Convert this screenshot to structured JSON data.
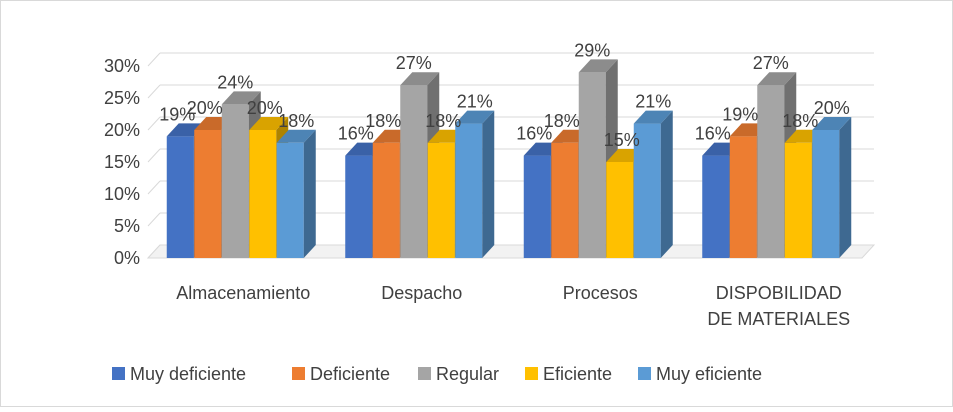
{
  "chart_data": {
    "type": "bar",
    "categories": [
      [
        "Almacenamiento"
      ],
      [
        "Despacho"
      ],
      [
        "Procesos"
      ],
      [
        "DISPOBILIDAD",
        "DE MATERIALES"
      ]
    ],
    "series": [
      {
        "name": "Muy deficiente",
        "color": "#4472C4",
        "values": [
          19,
          16,
          16,
          16
        ],
        "labels": [
          "19%",
          "16%",
          "16%",
          "16%"
        ]
      },
      {
        "name": "Deficiente",
        "color": "#ED7D31",
        "values": [
          20,
          18,
          18,
          19
        ],
        "labels": [
          "20%",
          "18%",
          "18%",
          "19%"
        ]
      },
      {
        "name": "Regular",
        "color": "#A5A5A5",
        "values": [
          24,
          27,
          29,
          27
        ],
        "labels": [
          "24%",
          "27%",
          "29%",
          "27%"
        ]
      },
      {
        "name": "Eficiente",
        "color": "#FFC000",
        "values": [
          20,
          18,
          15,
          18
        ],
        "labels": [
          "20%",
          "18%",
          "15%",
          "18%"
        ]
      },
      {
        "name": "Muy eficiente",
        "color": "#5B9BD5",
        "values": [
          18,
          21,
          21,
          20
        ],
        "labels": [
          "18%",
          "21%",
          "21%",
          "20%"
        ]
      }
    ],
    "yticks": [
      "0%",
      "5%",
      "10%",
      "15%",
      "20%",
      "25%",
      "30%"
    ],
    "ylim": [
      0,
      30
    ],
    "grid": true,
    "style": "3d-clustered-column",
    "legend_position": "bottom"
  }
}
